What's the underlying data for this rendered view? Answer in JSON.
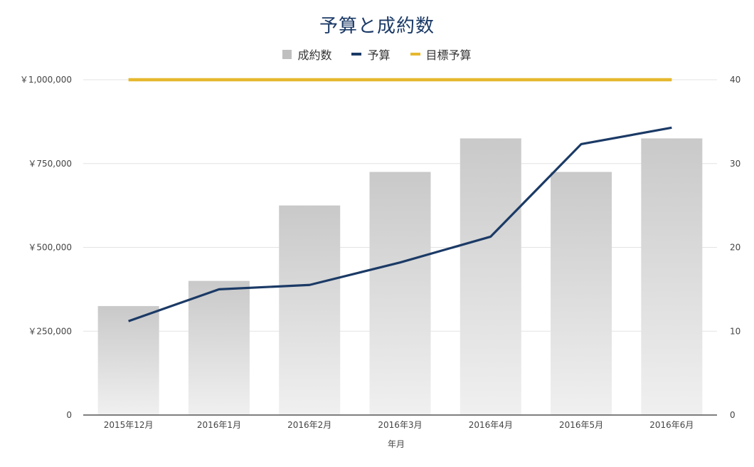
{
  "chart_data": {
    "type": "bar",
    "title": "予算と成約数",
    "xlabel": "年月",
    "ylabel": "",
    "y2label": "",
    "categories": [
      "2015年12月",
      "2016年1月",
      "2016年2月",
      "2016年3月",
      "2016年4月",
      "2016年5月",
      "2016年6月"
    ],
    "ylim": [
      0,
      1000000
    ],
    "y2lim": [
      0,
      40
    ],
    "y_ticks": [
      "0",
      "￥250,000",
      "￥500,000",
      "￥750,000",
      "￥1,000,000"
    ],
    "y_tick_values": [
      0,
      250000,
      500000,
      750000,
      1000000
    ],
    "y2_ticks": [
      "0",
      "10",
      "20",
      "30",
      "40"
    ],
    "y2_tick_values": [
      0,
      10,
      20,
      30,
      40
    ],
    "grid": true,
    "legend_position": "top-center",
    "series": [
      {
        "name": "成約数",
        "type": "bar",
        "axis": "right",
        "color": "#bfbfbf",
        "values": [
          13,
          16,
          25,
          29,
          33,
          29,
          33
        ]
      },
      {
        "name": "予算",
        "type": "line",
        "axis": "left",
        "color": "#1b3a66",
        "values": [
          280000,
          375000,
          388000,
          455000,
          532000,
          808000,
          857000
        ]
      },
      {
        "name": "目標予算",
        "type": "line",
        "axis": "left",
        "color": "#e6b82e",
        "values": [
          1000000,
          1000000,
          1000000,
          1000000,
          1000000,
          1000000,
          1000000
        ]
      }
    ]
  }
}
